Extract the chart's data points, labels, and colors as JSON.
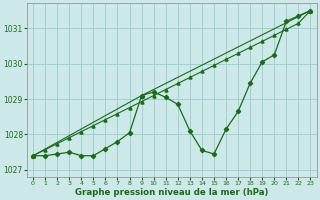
{
  "background_color": "#cce8e8",
  "grid_color": "#99cccc",
  "line_color": "#1a6b1a",
  "xlabel": "Graphe pression niveau de la mer (hPa)",
  "ylim": [
    1026.8,
    1031.7
  ],
  "xlim": [
    -0.5,
    23.5
  ],
  "yticks": [
    1027,
    1028,
    1029,
    1030,
    1031
  ],
  "xticks": [
    0,
    1,
    2,
    3,
    4,
    5,
    6,
    7,
    8,
    9,
    10,
    11,
    12,
    13,
    14,
    15,
    16,
    17,
    18,
    19,
    20,
    21,
    22,
    23
  ],
  "series_zigzag": {
    "x": [
      0,
      1,
      2,
      3,
      4,
      5,
      6,
      7,
      8,
      9,
      10,
      11,
      12,
      13,
      14,
      15,
      16,
      17,
      18,
      19,
      20,
      21,
      22,
      23
    ],
    "y": [
      1027.4,
      1027.4,
      1027.45,
      1027.5,
      1027.4,
      1027.4,
      1027.6,
      1027.8,
      1028.05,
      1029.1,
      1029.2,
      1029.05,
      1028.85,
      1028.1,
      1027.55,
      1027.45,
      1028.15,
      1028.65,
      1029.45,
      1030.05,
      1030.25,
      1031.2,
      1031.35,
      1031.5
    ]
  },
  "series_trend1": {
    "x": [
      0,
      1,
      2,
      3,
      4,
      5,
      6,
      7,
      8,
      9,
      10,
      11,
      12,
      13,
      14,
      15,
      16,
      17,
      18,
      19,
      20,
      21,
      22,
      23
    ],
    "y": [
      1027.4,
      1027.57,
      1027.74,
      1027.91,
      1028.08,
      1028.25,
      1028.42,
      1028.59,
      1028.76,
      1028.93,
      1029.1,
      1029.27,
      1029.44,
      1029.61,
      1029.78,
      1029.95,
      1030.12,
      1030.29,
      1030.46,
      1030.63,
      1030.8,
      1030.97,
      1031.14,
      1031.5
    ]
  },
  "series_trend2": {
    "x": [
      0,
      9,
      23
    ],
    "y": [
      1027.4,
      1029.1,
      1031.5
    ]
  }
}
